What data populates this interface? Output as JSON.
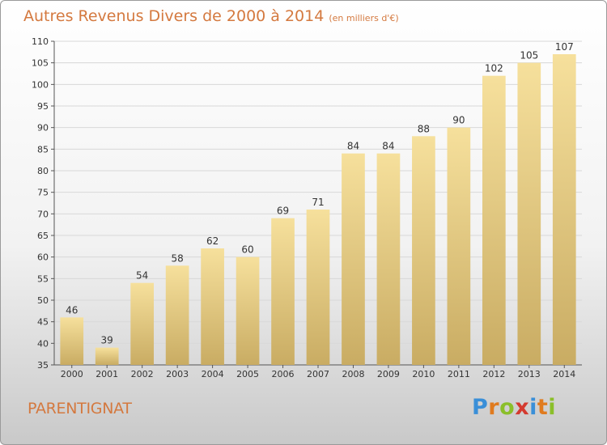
{
  "title": "Autres Revenus Divers de 2000 à 2014",
  "subtitle": "(en milliers d'€)",
  "place": "PARENTIGNAT",
  "logo": {
    "letters": [
      "P",
      "r",
      "o",
      "x",
      "i",
      "t",
      "i"
    ],
    "colors": [
      "#3a8fd8",
      "#e07b1f",
      "#8bbf2a",
      "#d43a2f",
      "#3a8fd8",
      "#e07b1f",
      "#8bbf2a"
    ]
  },
  "colors": {
    "title": "#d4793f",
    "bar_light": "#f6e09c",
    "bar_dark": "#c9ac63",
    "grid": "#d8d8d8",
    "text": "#333333"
  },
  "chart_data": {
    "type": "bar",
    "categories": [
      "2000",
      "2001",
      "2002",
      "2003",
      "2004",
      "2005",
      "2006",
      "2007",
      "2008",
      "2009",
      "2010",
      "2011",
      "2012",
      "2013",
      "2014"
    ],
    "values": [
      46,
      39,
      54,
      58,
      62,
      60,
      69,
      71,
      84,
      84,
      88,
      90,
      102,
      105,
      107
    ],
    "title": "Autres Revenus Divers de 2000 à 2014",
    "subtitle": "(en milliers d'€)",
    "ylim": [
      35,
      110
    ],
    "yticks": [
      35,
      40,
      45,
      50,
      55,
      60,
      65,
      70,
      75,
      80,
      85,
      90,
      95,
      100,
      105,
      110
    ],
    "grid": true,
    "data_labels": true
  }
}
